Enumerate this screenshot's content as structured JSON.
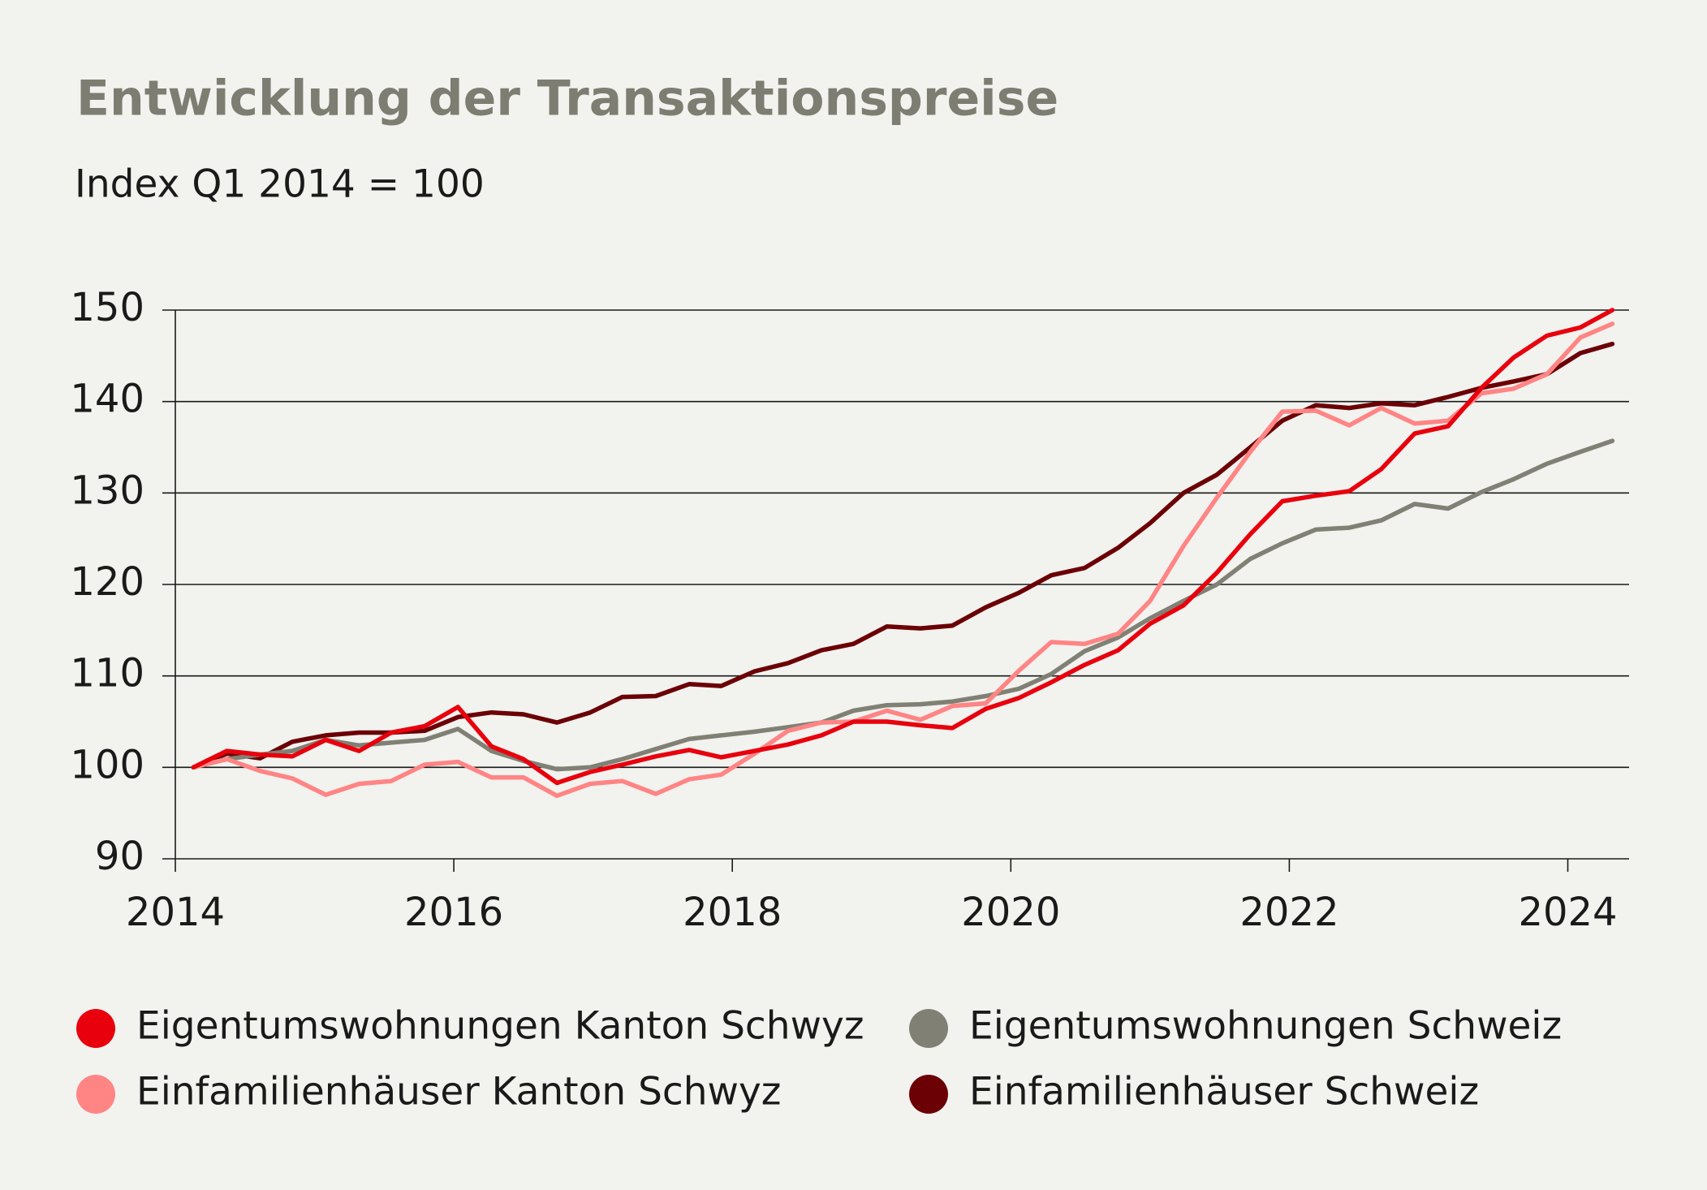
{
  "chart_data": {
    "type": "line",
    "title": "Entwicklung der Transaktionspreise",
    "subtitle": "Index Q1 2014 = 100",
    "x": [
      2014.13,
      2014.37,
      2014.61,
      2014.84,
      2015.08,
      2015.32,
      2015.55,
      2015.79,
      2016.03,
      2016.27,
      2016.5,
      2016.74,
      2016.98,
      2017.21,
      2017.45,
      2017.69,
      2017.92,
      2018.16,
      2018.4,
      2018.64,
      2018.87,
      2019.11,
      2019.35,
      2019.58,
      2019.82,
      2020.06,
      2020.29,
      2020.53,
      2020.77,
      2021.0,
      2021.24,
      2021.48,
      2021.72,
      2021.95,
      2022.19,
      2022.43,
      2022.66,
      2022.9,
      2023.14,
      2023.38,
      2023.61,
      2023.85,
      2024.09,
      2024.32
    ],
    "series": [
      {
        "name": "Eigentumswohnungen Kanton Schwyz",
        "color": "#e8000d",
        "values": [
          100,
          101.8,
          101.4,
          101.2,
          103,
          101.8,
          103.8,
          104.5,
          106.6,
          102.3,
          100.9,
          98.3,
          99.5,
          100.3,
          101.2,
          101.9,
          101.1,
          101.8,
          102.5,
          103.5,
          105,
          105,
          104.6,
          104.3,
          106.4,
          107.6,
          109.3,
          111.2,
          112.8,
          115.7,
          117.7,
          121.3,
          125.5,
          129.1,
          129.7,
          130.2,
          132.6,
          136.5,
          137.3,
          141.5,
          144.8,
          147.2,
          148.1,
          150
        ]
      },
      {
        "name": "Einfamilienhäuser Kanton Schwyz",
        "color": "#ff8585",
        "values": [
          100,
          100.9,
          99.6,
          98.8,
          97,
          98.2,
          98.5,
          100.3,
          100.6,
          98.9,
          98.9,
          96.9,
          98.2,
          98.5,
          97.1,
          98.7,
          99.2,
          101.5,
          104,
          104.9,
          105,
          106.2,
          105.2,
          106.7,
          107,
          110.6,
          113.7,
          113.5,
          114.6,
          118.2,
          124.2,
          129.5,
          134.5,
          138.9,
          139,
          137.4,
          139.3,
          137.6,
          137.9,
          140.9,
          141.4,
          143,
          147,
          148.5
        ]
      },
      {
        "name": "Eigentumswohnungen Schweiz",
        "color": "#808075",
        "values": [
          100,
          100.9,
          101.4,
          101.8,
          103,
          102.4,
          102.7,
          103,
          104.2,
          101.8,
          100.7,
          99.8,
          100,
          100.9,
          102,
          103.1,
          103.5,
          103.9,
          104.4,
          104.9,
          106.2,
          106.8,
          106.9,
          107.2,
          107.8,
          108.6,
          110.2,
          112.7,
          114.2,
          116.3,
          118.2,
          120,
          122.8,
          124.5,
          126,
          126.2,
          127,
          128.8,
          128.3,
          130.1,
          131.5,
          133.2,
          134.5,
          135.7
        ]
      },
      {
        "name": "Einfamilienhäuser Schweiz",
        "color": "#6b0005",
        "values": [
          100,
          101.5,
          101,
          102.8,
          103.5,
          103.8,
          103.8,
          104,
          105.5,
          106,
          105.8,
          104.9,
          106,
          107.7,
          107.8,
          109.1,
          108.9,
          110.5,
          111.4,
          112.8,
          113.5,
          115.4,
          115.2,
          115.5,
          117.5,
          119.1,
          121,
          121.8,
          124,
          126.7,
          130,
          132,
          135,
          137.9,
          139.6,
          139.3,
          139.8,
          139.6,
          140.5,
          141.5,
          142.2,
          143,
          145.3,
          146.3
        ]
      }
    ],
    "xlim": [
      2014,
      2024.44
    ],
    "xticks": [
      2014,
      2016,
      2018,
      2020,
      2022,
      2024
    ],
    "ylim": [
      90,
      150
    ],
    "yticks": [
      90,
      100,
      110,
      120,
      130,
      140,
      150
    ],
    "grid": true
  }
}
